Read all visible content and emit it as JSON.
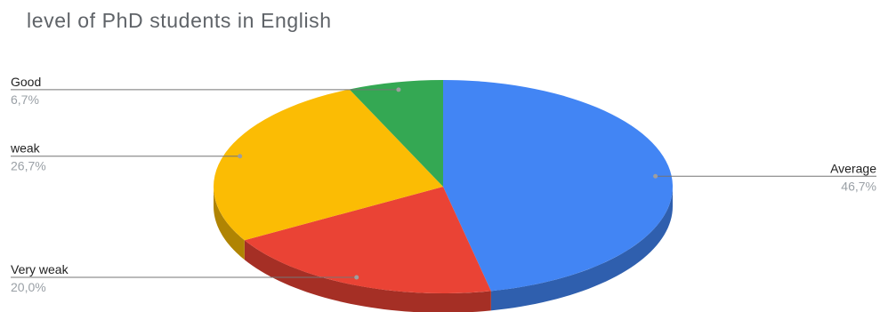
{
  "chart_data": {
    "type": "pie",
    "title": "level of PhD students in English",
    "slices": [
      {
        "label": "Average",
        "value": 46.7,
        "percent_label": "46,7%",
        "color": "#4285f4",
        "side_color": "#2f5fae"
      },
      {
        "label": "Very weak",
        "value": 20.0,
        "percent_label": "20,0%",
        "color": "#ea4335",
        "side_color": "#a52f25"
      },
      {
        "label": "weak",
        "value": 26.7,
        "percent_label": "26,7%",
        "color": "#fbbc04",
        "side_color": "#b08403"
      },
      {
        "label": "Good",
        "value": 6.7,
        "percent_label": "6,7%",
        "color": "#34a853",
        "side_color": "#247639"
      }
    ],
    "start_angle_deg": 0,
    "direction": "clockwise",
    "style": "3d"
  }
}
